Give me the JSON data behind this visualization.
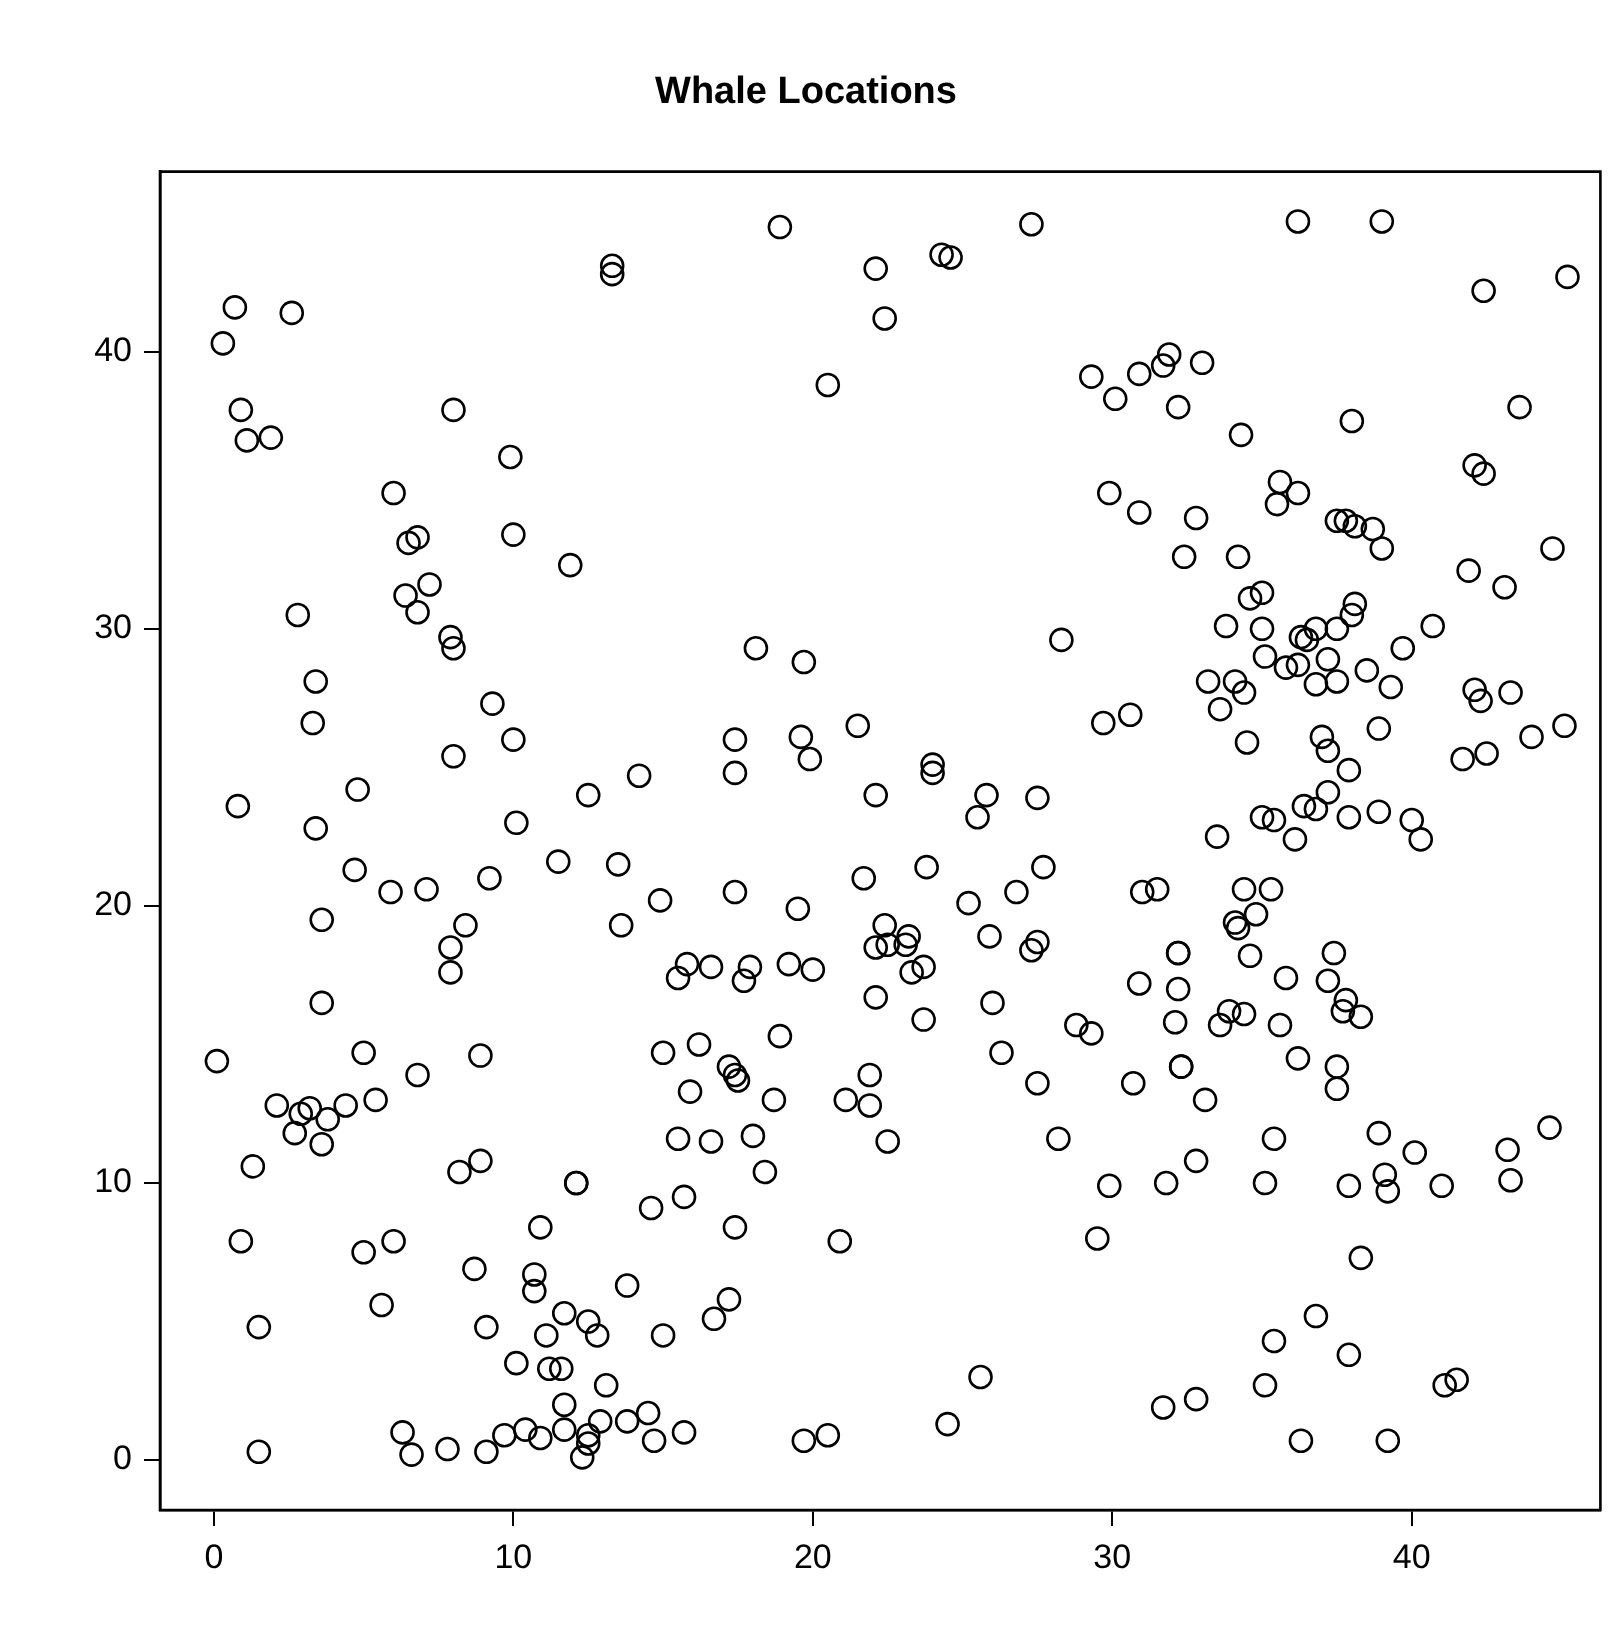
{
  "chart_data": {
    "type": "scatter",
    "title": "Whale Locations",
    "marker": "circle",
    "xlim": [
      -1.8,
      46.3
    ],
    "ylim": [
      -1.8,
      46.5
    ],
    "xticks": [
      0,
      10,
      20,
      30,
      40
    ],
    "yticks": [
      0,
      10,
      20,
      30,
      40
    ],
    "series": [
      {
        "color": "#000000",
        "x": [
          4.7,
          5.9,
          7.1,
          9.2,
          11.5,
          13.5,
          3.6,
          8.4,
          7.9,
          7.9,
          13.6,
          3.6,
          0.1,
          5.0,
          6.8,
          8.9,
          2.1,
          2.9,
          3.2,
          3.8,
          2.7,
          4.4,
          3.6,
          5.4,
          1.3,
          8.2,
          8.9,
          12.1,
          12.1,
          10.9,
          0.9,
          5.0,
          6.0,
          8.7,
          10.7,
          10.7,
          5.6,
          13.8,
          1.5,
          9.1,
          11.7,
          12.5,
          12.8,
          11.1,
          10.1,
          11.2,
          11.6,
          13.1,
          11.7,
          6.3,
          6.6,
          7.8,
          9.1,
          9.7,
          10.4,
          10.9,
          11.7,
          12.5,
          12.5,
          12.3,
          12.9,
          13.8,
          1.5,
          13.3,
          13.3,
          0.7,
          2.6,
          0.3,
          0.9,
          1.1,
          1.9,
          8.0,
          9.9,
          6.0,
          6.5,
          6.8,
          10.0,
          11.9,
          2.8,
          6.4,
          7.2,
          6.8,
          7.9,
          8.0,
          3.4,
          3.3,
          9.3,
          10.0,
          8.0,
          4.8,
          0.8,
          3.4,
          10.1,
          12.5,
          14.2,
          18.9,
          27.3,
          22.1,
          24.3,
          24.6,
          22.4,
          20.5,
          29.3,
          30.1,
          29.9,
          18.1,
          19.7,
          28.3,
          17.4,
          17.4,
          19.6,
          19.9,
          21.5,
          24.0,
          24.0,
          22.1,
          25.8,
          25.5,
          27.5,
          29.7,
          36.2,
          39.0,
          42.4,
          45.2,
          31.9,
          31.7,
          30.9,
          33.0,
          32.2,
          34.3,
          38.0,
          43.6,
          35.6,
          36.2,
          35.5,
          42.1,
          42.4,
          30.9,
          32.8,
          37.5,
          37.8,
          38.1,
          38.7,
          39.0,
          44.7,
          32.4,
          34.2,
          41.9,
          43.1,
          35.0,
          34.6,
          38.1,
          38.0,
          33.8,
          35.0,
          40.7,
          36.3,
          36.5,
          36.8,
          37.5,
          39.7,
          35.1,
          35.8,
          36.2,
          37.2,
          36.8,
          37.5,
          38.5,
          39.3,
          33.2,
          34.1,
          34.4,
          33.6,
          42.1,
          42.3,
          43.3,
          30.6,
          34.5,
          37.0,
          37.2,
          38.9,
          41.7,
          42.5,
          44.0,
          45.1,
          37.9,
          37.2,
          36.4,
          36.8,
          35.0,
          35.4,
          37.9,
          38.9,
          40.0,
          40.3,
          33.5,
          36.1,
          14.9,
          17.4,
          19.5,
          21.7,
          23.8,
          25.2,
          26.8,
          27.7,
          15.8,
          15.5,
          16.6,
          17.9,
          17.7,
          19.2,
          20.0,
          22.4,
          22.1,
          22.5,
          23.2,
          23.1,
          23.7,
          23.3,
          25.9,
          27.3,
          27.5,
          22.1,
          23.7,
          26.0,
          26.3,
          28.8,
          29.3,
          27.5,
          28.2,
          29.9,
          29.5,
          15.0,
          16.2,
          17.2,
          17.4,
          17.5,
          15.9,
          18.9,
          18.7,
          21.9,
          21.1,
          21.9,
          22.5,
          15.5,
          16.6,
          18.0,
          18.4,
          14.6,
          15.7,
          17.4,
          20.9,
          17.2,
          16.7,
          15.0,
          14.5,
          14.7,
          15.7,
          19.7,
          20.5,
          24.5,
          25.6,
          31.0,
          31.5,
          34.4,
          35.3,
          34.1,
          34.2,
          34.8,
          32.2,
          32.2,
          37.4,
          34.6,
          30.9,
          32.2,
          35.8,
          37.2,
          37.8,
          37.7,
          38.3,
          33.9,
          34.4,
          33.6,
          32.1,
          35.6,
          32.3,
          32.3,
          36.2,
          37.5,
          37.5,
          30.7,
          33.1,
          35.4,
          38.9,
          40.1,
          43.2,
          44.6,
          32.8,
          31.8,
          35.1,
          37.9,
          39.1,
          39.2,
          41.0,
          43.3,
          38.3,
          36.8,
          35.4,
          37.9,
          35.1,
          41.1,
          41.5,
          31.7,
          32.8,
          36.3,
          39.2
        ],
        "values": [
          21.3,
          20.5,
          20.6,
          21.0,
          21.6,
          21.5,
          19.5,
          19.3,
          18.5,
          17.6,
          19.3,
          16.5,
          14.4,
          14.7,
          13.9,
          14.6,
          12.8,
          12.5,
          12.7,
          12.3,
          11.8,
          12.8,
          11.4,
          13.0,
          10.6,
          10.4,
          10.8,
          10.0,
          10.0,
          8.4,
          7.9,
          7.5,
          7.9,
          6.9,
          6.7,
          6.1,
          5.6,
          6.3,
          4.8,
          4.8,
          5.3,
          5.0,
          4.5,
          4.5,
          3.5,
          3.3,
          3.3,
          2.7,
          2.0,
          1.0,
          0.2,
          0.4,
          0.3,
          0.9,
          1.1,
          0.8,
          1.1,
          0.9,
          0.6,
          0.1,
          1.4,
          1.4,
          0.3,
          43.1,
          42.8,
          41.6,
          41.4,
          40.3,
          37.9,
          36.8,
          36.9,
          37.9,
          36.2,
          34.9,
          33.1,
          33.3,
          33.4,
          32.3,
          30.5,
          31.2,
          31.6,
          30.6,
          29.7,
          29.3,
          28.1,
          26.6,
          27.3,
          26.0,
          25.4,
          24.2,
          23.6,
          22.8,
          23.0,
          24.0,
          24.7,
          44.5,
          44.6,
          43.0,
          43.5,
          43.4,
          41.2,
          38.8,
          39.1,
          38.3,
          34.9,
          29.3,
          28.8,
          29.6,
          26.0,
          24.8,
          26.1,
          25.3,
          26.5,
          25.1,
          24.8,
          24.0,
          24.0,
          23.2,
          23.9,
          26.6,
          44.7,
          44.7,
          42.2,
          42.7,
          39.9,
          39.5,
          39.2,
          39.6,
          38.0,
          37.0,
          37.5,
          38.0,
          35.3,
          34.9,
          34.5,
          35.9,
          35.6,
          34.2,
          34.0,
          33.9,
          33.9,
          33.7,
          33.6,
          32.9,
          32.9,
          32.6,
          32.6,
          32.1,
          31.5,
          31.3,
          31.1,
          30.9,
          30.5,
          30.1,
          30.0,
          30.1,
          29.7,
          29.6,
          30.0,
          30.0,
          29.3,
          29.0,
          28.6,
          28.7,
          28.9,
          28.0,
          28.1,
          28.5,
          27.9,
          28.1,
          28.1,
          27.7,
          27.1,
          27.8,
          27.4,
          27.7,
          26.9,
          25.9,
          26.1,
          25.6,
          26.4,
          25.3,
          25.5,
          26.1,
          26.5,
          24.9,
          24.1,
          23.6,
          23.5,
          23.2,
          23.1,
          23.2,
          23.4,
          23.1,
          22.4,
          22.5,
          22.4,
          20.2,
          20.5,
          19.9,
          21.0,
          21.4,
          20.1,
          20.5,
          21.4,
          17.9,
          17.4,
          17.8,
          17.8,
          17.3,
          17.9,
          17.7,
          19.3,
          18.5,
          18.6,
          18.9,
          18.6,
          17.8,
          17.6,
          18.9,
          18.4,
          18.7,
          16.7,
          15.9,
          16.5,
          14.7,
          15.7,
          15.4,
          13.6,
          11.6,
          9.9,
          8.0,
          14.7,
          15.0,
          14.2,
          13.9,
          13.7,
          13.3,
          15.3,
          13.0,
          13.9,
          13.0,
          12.8,
          11.5,
          11.6,
          11.5,
          11.7,
          10.4,
          9.1,
          9.5,
          8.4,
          7.9,
          5.8,
          5.1,
          4.5,
          1.7,
          0.7,
          1.0,
          0.7,
          0.9,
          1.3,
          3.0,
          20.5,
          20.6,
          20.6,
          20.6,
          19.4,
          19.2,
          19.7,
          18.3,
          18.3,
          18.3,
          18.2,
          17.2,
          17.0,
          17.4,
          17.3,
          16.6,
          16.2,
          16.0,
          16.2,
          16.1,
          15.7,
          15.8,
          15.7,
          14.2,
          14.2,
          14.5,
          14.2,
          13.4,
          13.6,
          13.0,
          11.6,
          11.8,
          11.1,
          11.2,
          12.0,
          10.8,
          10.0,
          10.0,
          9.9,
          10.3,
          9.7,
          9.9,
          10.1,
          7.3,
          5.2,
          4.3,
          3.8,
          2.7,
          2.7,
          2.9,
          1.9,
          2.2,
          0.7,
          0.7
        ]
      }
    ]
  }
}
